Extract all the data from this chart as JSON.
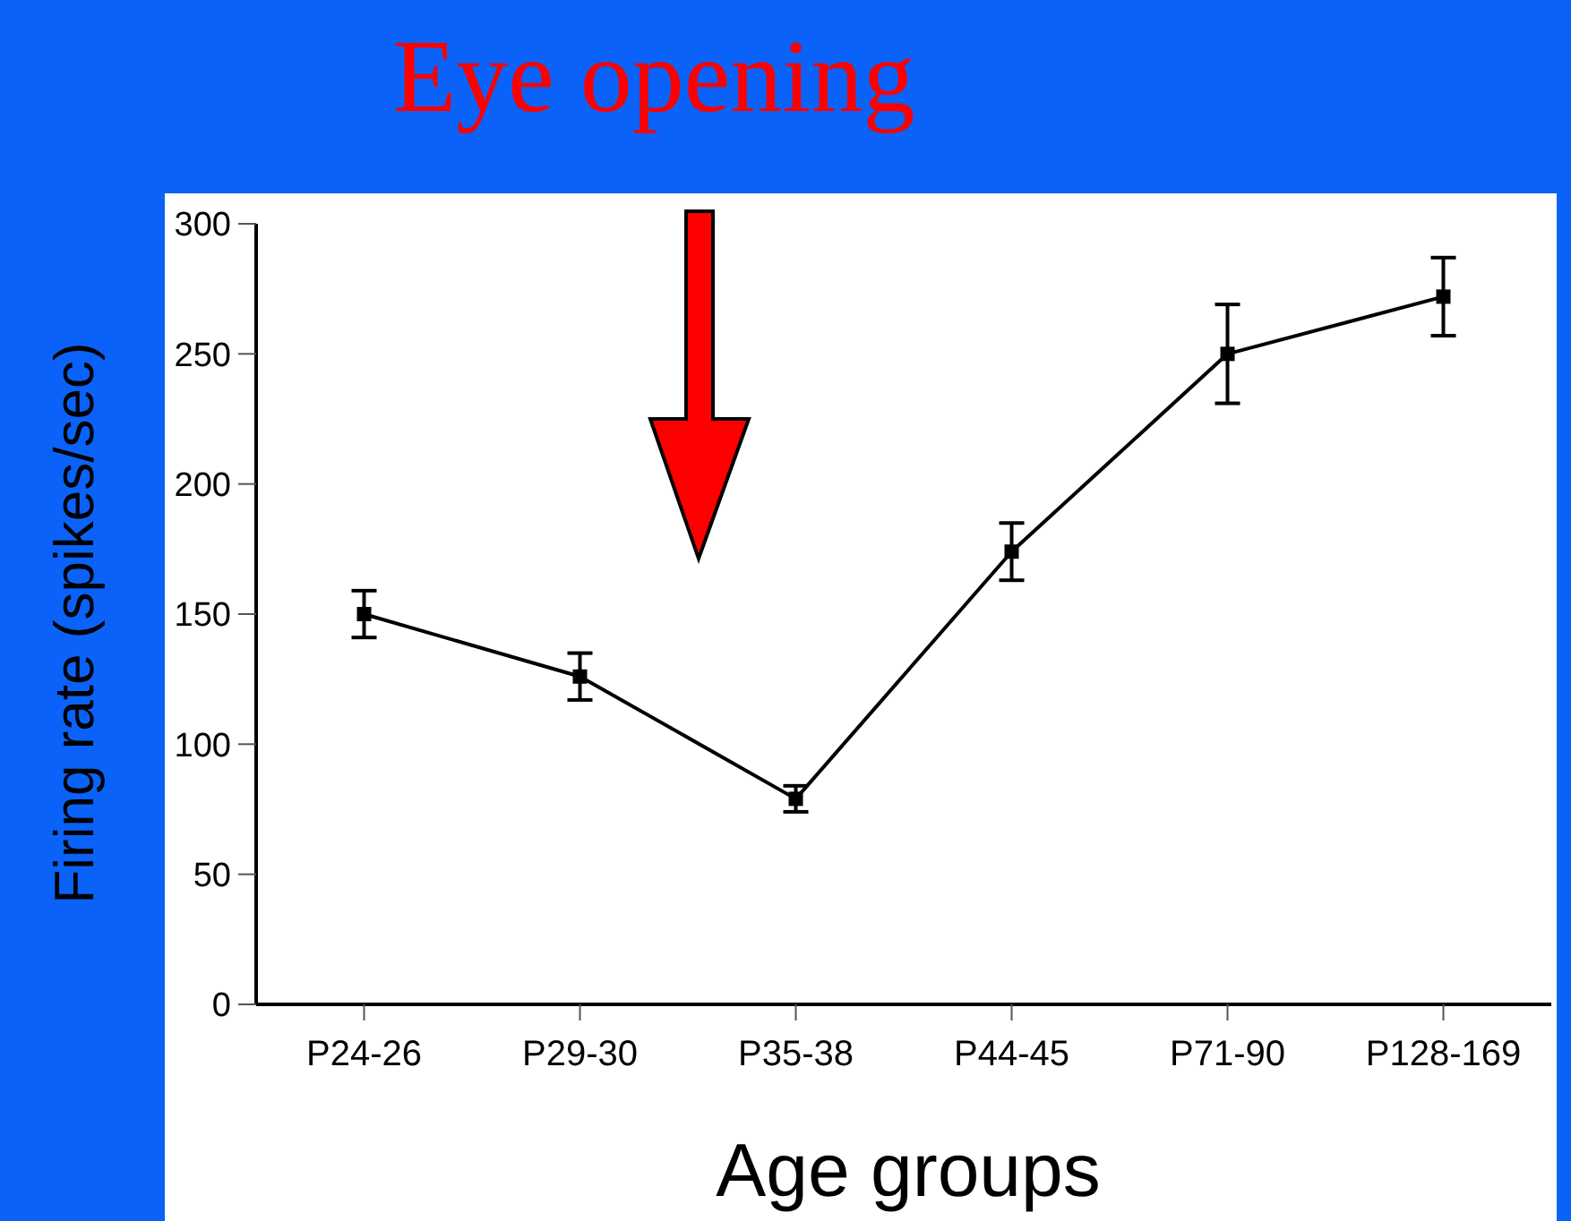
{
  "chart_data": {
    "type": "line",
    "title": "Eye opening",
    "xlabel": "Age groups",
    "ylabel": "Firing rate (spikes/sec)",
    "categories": [
      "P24-26",
      "P29-30",
      "P35-38",
      "P44-45",
      "P71-90",
      "P128-169"
    ],
    "series": [
      {
        "color": "#000000",
        "values": [
          150,
          126,
          79,
          174,
          250,
          272
        ],
        "errors": [
          9,
          9,
          5,
          11,
          19,
          15
        ]
      }
    ],
    "ylim": [
      0,
      300
    ],
    "yticks": [
      0,
      50,
      100,
      150,
      200,
      250,
      300
    ],
    "grid": false,
    "marker": "square",
    "line_style": "solid"
  }
}
